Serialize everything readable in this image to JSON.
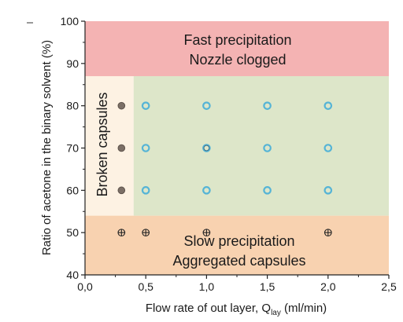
{
  "chart_data": {
    "type": "scatter",
    "xlabel": "Flow rate of  out layer, Q",
    "xlabel_sub": "lay",
    "xlabel_unit": " (ml/min)",
    "ylabel": "Ratio of acetone in the binary solvent (%)",
    "xlim": [
      0.0,
      2.5
    ],
    "ylim": [
      40,
      100
    ],
    "x_ticks": [
      "0,0",
      "0,5",
      "1,0",
      "1,5",
      "2,0",
      "2,5"
    ],
    "y_ticks": [
      "40",
      "50",
      "60",
      "70",
      "80",
      "90",
      "100"
    ],
    "regions": [
      {
        "id": "fast",
        "x": [
          0.0,
          2.5
        ],
        "y": [
          87,
          100
        ],
        "color": "#f4b3b3",
        "lines": [
          "Fast precipitation",
          "Nozzle clogged"
        ]
      },
      {
        "id": "broken",
        "x": [
          0.0,
          0.4
        ],
        "y": [
          54,
          87
        ],
        "color": "#fdf2e3",
        "lines": [
          "Broken capsules"
        ]
      },
      {
        "id": "good",
        "x": [
          0.4,
          2.5
        ],
        "y": [
          54,
          87
        ],
        "color": "#dde6c9",
        "lines": []
      },
      {
        "id": "slow",
        "x": [
          0.0,
          2.5
        ],
        "y": [
          40,
          54
        ],
        "color": "#f8d2b0",
        "lines": [
          "Slow precipitation",
          "Aggregated capsules"
        ]
      }
    ],
    "series": [
      {
        "marker": "filled-gray",
        "color": "#7b6f66",
        "points": [
          [
            0.3,
            80
          ],
          [
            0.3,
            70
          ],
          [
            0.3,
            60
          ]
        ]
      },
      {
        "marker": "open-cyan",
        "color": "#55b4d6",
        "points": [
          [
            0.5,
            80
          ],
          [
            1.0,
            80
          ],
          [
            1.5,
            80
          ],
          [
            2.0,
            80
          ],
          [
            0.5,
            70
          ],
          [
            1.0,
            70
          ],
          [
            1.5,
            70
          ],
          [
            2.0,
            70
          ],
          [
            0.5,
            60
          ],
          [
            1.0,
            60
          ],
          [
            1.5,
            60
          ],
          [
            2.0,
            60
          ]
        ]
      },
      {
        "marker": "circle-plus",
        "color": "#222222",
        "points": [
          [
            0.3,
            50
          ],
          [
            0.5,
            50
          ],
          [
            1.0,
            50
          ],
          [
            2.0,
            50
          ]
        ]
      }
    ]
  }
}
